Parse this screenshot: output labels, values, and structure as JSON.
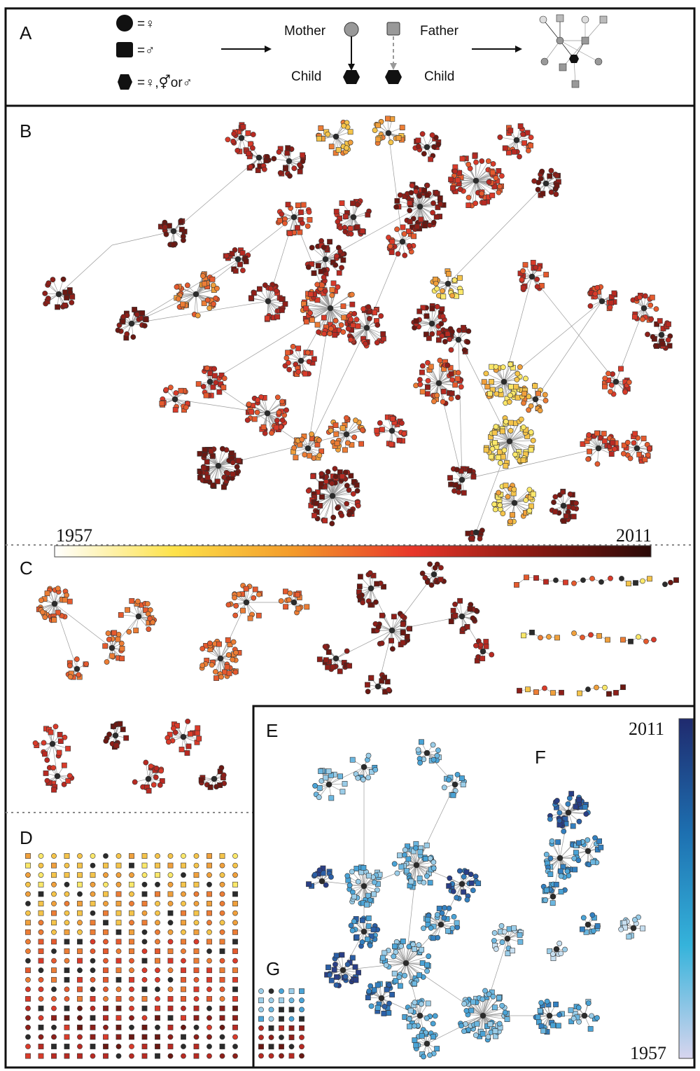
{
  "panel_labels": {
    "a": "A",
    "b": "B",
    "c": "C",
    "d": "D",
    "e": "E",
    "f": "F",
    "g": "G"
  },
  "legend": {
    "mother_label": "Mother",
    "father_label": "Father",
    "child_label_left": "Child",
    "child_label_right": "Child",
    "circle_equals": "=♀",
    "square_equals": "=♂",
    "hexagon_equals": "=♀,⚥or♂"
  },
  "colorbar_warm": {
    "min_label": "1957",
    "max_label": "2011",
    "colors": [
      "#ffffff",
      "#fde24a",
      "#f39a2a",
      "#e8372a",
      "#8a1a12",
      "#2a0a08"
    ]
  },
  "colorbar_blue": {
    "min_label": "1957",
    "max_label": "2011",
    "colors": [
      "#d7d5ee",
      "#35b3db",
      "#1d6fb0",
      "#1f2a6e"
    ]
  },
  "node_colors": {
    "warm": [
      "#fbe86a",
      "#f5c44a",
      "#f0a03c",
      "#ec7d35",
      "#e55a2e",
      "#d93b2a",
      "#b82a22",
      "#8e1f19",
      "#6a1812",
      "#2b2b2b"
    ],
    "blue": [
      "#c7dff0",
      "#9bcde8",
      "#6cb7e0",
      "#4aa3d6",
      "#3380c0",
      "#2b5fa6",
      "#2a3f86",
      "#2b2b2b"
    ]
  }
}
